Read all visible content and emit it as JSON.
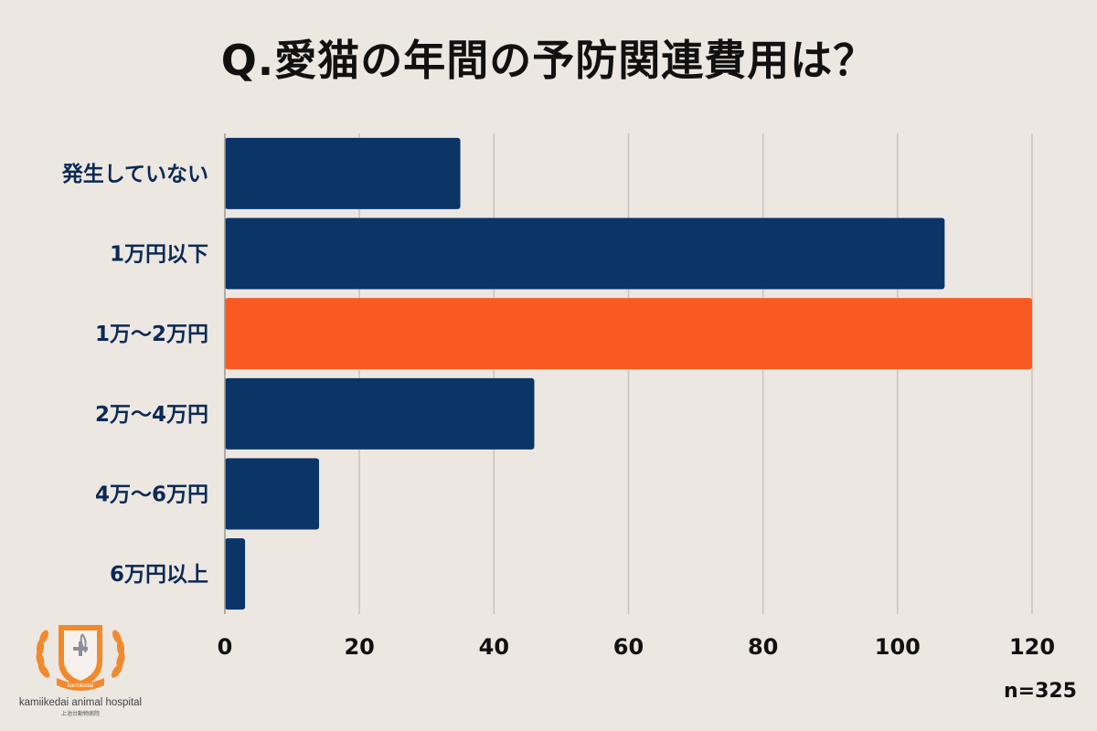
{
  "title": "Q.愛猫の年間の予防関連費用は？",
  "sample_size": "n=325",
  "logo": {
    "name": "kamiikedai animal hospital",
    "sub": "上池台動物病院",
    "ribbon": "kamiikedai"
  },
  "colors": {
    "background": "#ede7e2",
    "bar_default": "#0a3566",
    "bar_highlight": "#f85a22",
    "grid": "#c8c3be",
    "label": "#0a2a55",
    "logo_orange": "#f08a2c"
  },
  "chart_data": {
    "type": "bar",
    "orientation": "horizontal",
    "categories": [
      "発生していない",
      "1万円以下",
      "1万〜2万円",
      "2万〜4万円",
      "4万〜6万円",
      "6万円以上"
    ],
    "values": [
      35,
      107,
      120,
      46,
      14,
      3
    ],
    "highlight_index": 2,
    "xlim": [
      0,
      120
    ],
    "xticks": [
      0,
      20,
      40,
      60,
      80,
      100,
      120
    ],
    "grid": true,
    "title": "Q.愛猫の年間の予防関連費用は？",
    "xlabel": "",
    "ylabel": ""
  }
}
